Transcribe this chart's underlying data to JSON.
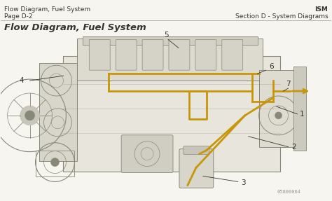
{
  "bg_color": "#f0ede8",
  "page_bg": "#f7f5f0",
  "top_left_line1": "Flow Diagram, Fuel System",
  "top_left_line2": "Page D-2",
  "top_right_line1": "ISM",
  "top_right_line2": "Section D - System Diagrams",
  "main_title": "Flow Diagram, Fuel System",
  "watermark": "05800064",
  "engine_outline": "#888878",
  "engine_fill": "#e8e5dc",
  "engine_dark": "#c8c5bc",
  "fuel_color": "#c8960a",
  "text_color": "#333330",
  "text_color_light": "#666660",
  "font_size_header": 6.5,
  "font_size_title": 9.5,
  "font_size_label": 7.5,
  "font_size_watermark": 5
}
